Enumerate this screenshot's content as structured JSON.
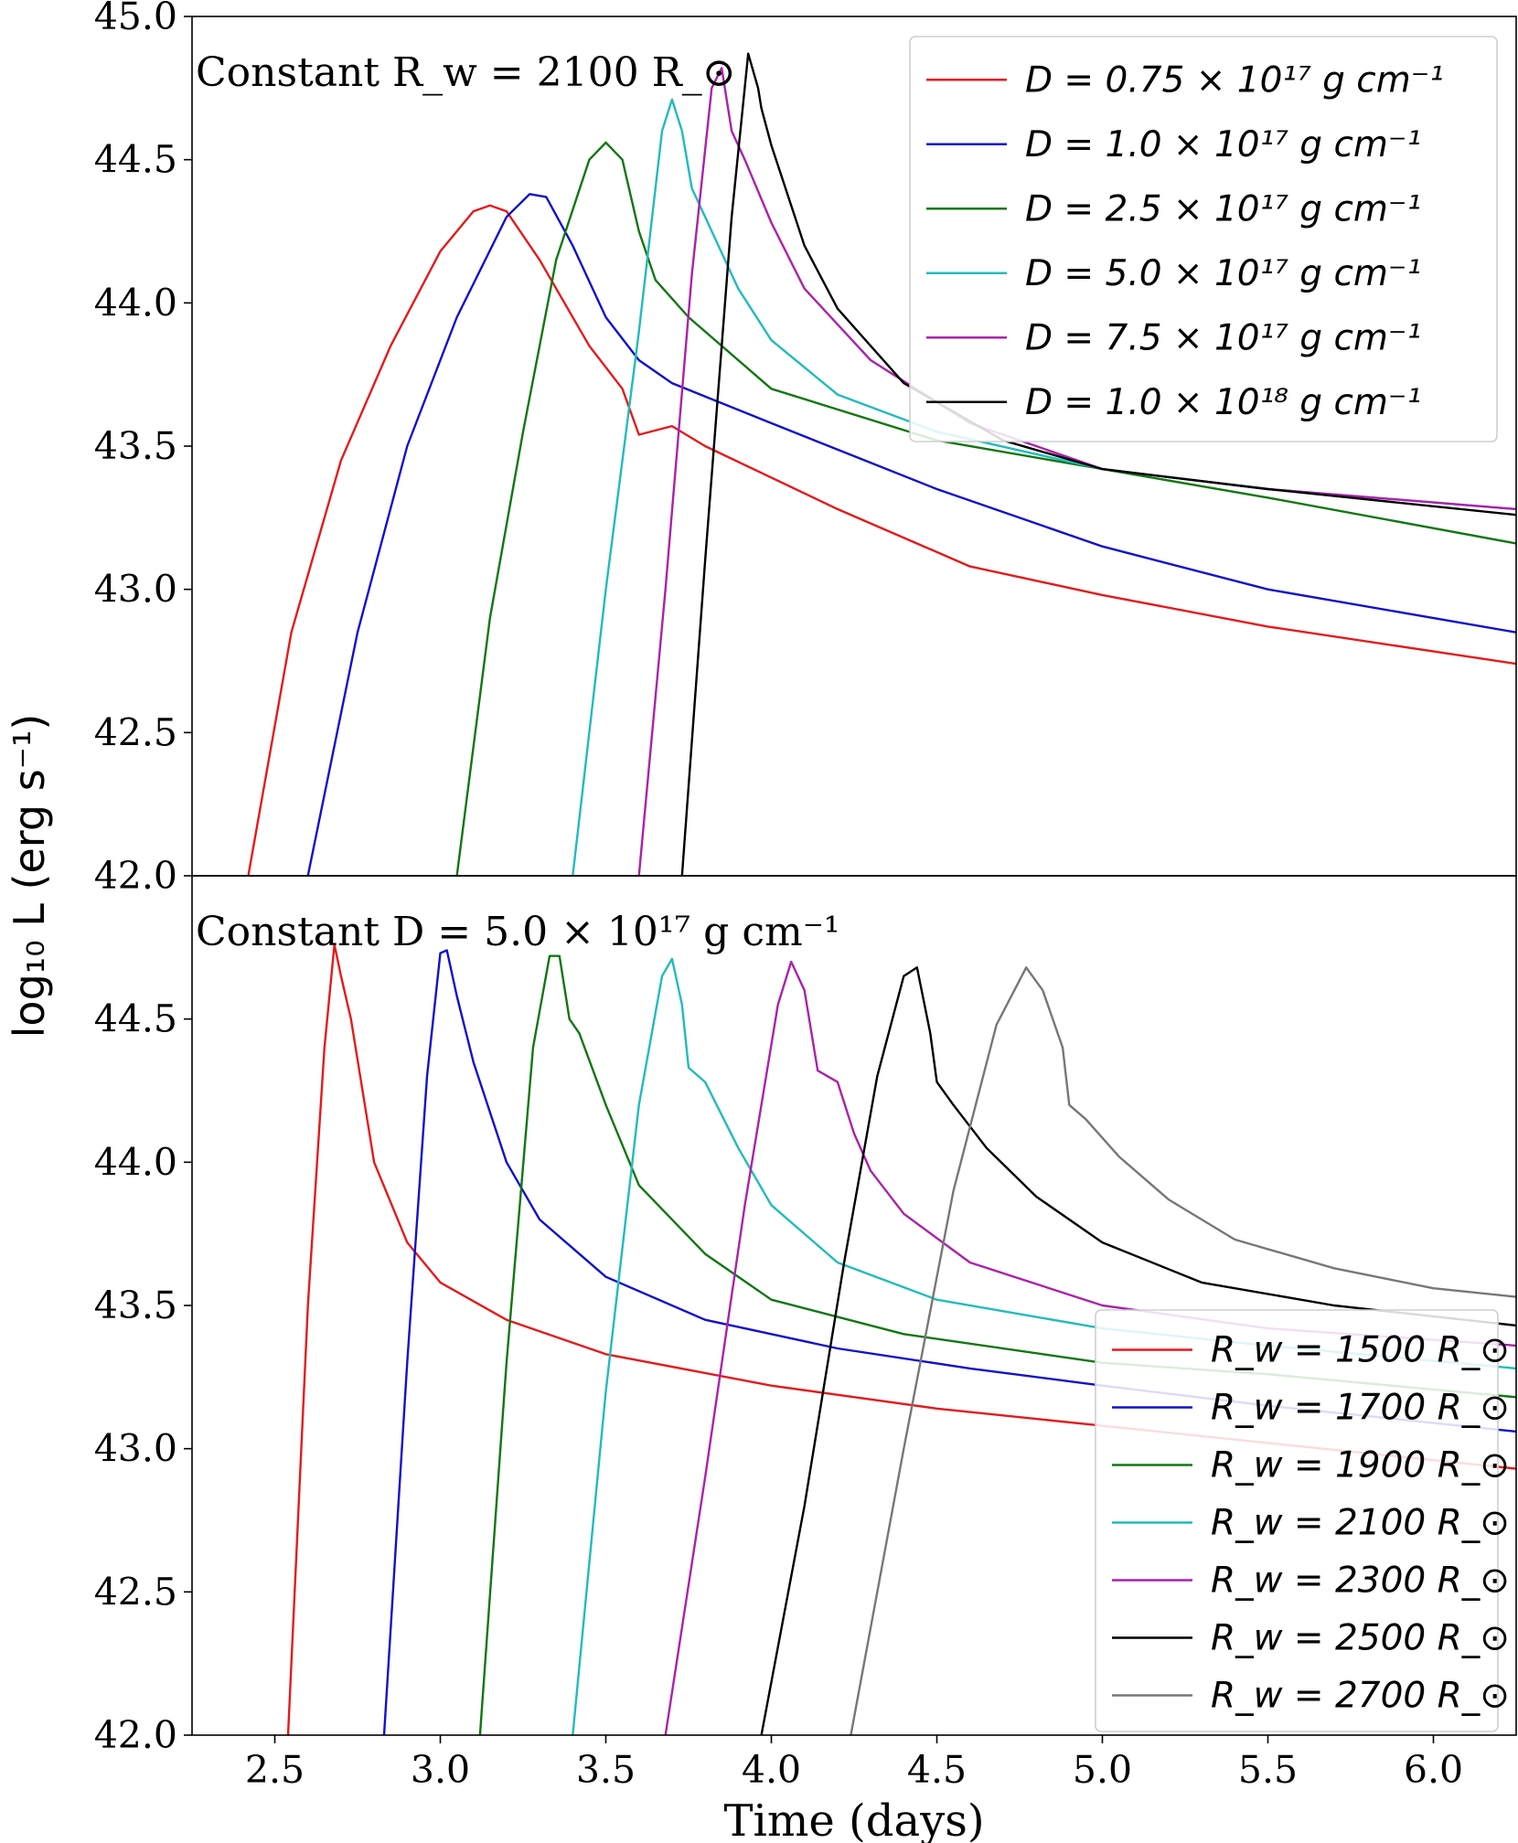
{
  "chart_data": [
    {
      "type": "line",
      "annotation": "Constant R_w = 2100 R_⊙",
      "ylabel": "log₁₀ L (erg s⁻¹)",
      "xlim": [
        2.25,
        6.25
      ],
      "ylim": [
        42.0,
        45.0
      ],
      "yticks": [
        "42.0",
        "42.5",
        "43.0",
        "43.5",
        "44.0",
        "44.5",
        "45.0"
      ],
      "grid": false,
      "legend_position": "top-right",
      "series": [
        {
          "name": "D = 0.75 × 10¹⁷ g cm⁻¹",
          "color": "#e41a1c",
          "x": [
            2.42,
            2.55,
            2.7,
            2.85,
            3.0,
            3.1,
            3.15,
            3.2,
            3.3,
            3.45,
            3.55,
            3.6,
            3.7,
            3.8,
            4.2,
            4.6,
            5.0,
            5.5,
            6.25
          ],
          "y": [
            42.0,
            42.85,
            43.45,
            43.85,
            44.18,
            44.32,
            44.34,
            44.32,
            44.15,
            43.85,
            43.7,
            43.54,
            43.57,
            43.5,
            43.28,
            43.08,
            42.98,
            42.87,
            42.74
          ]
        },
        {
          "name": "D = 1.0 × 10¹⁷ g cm⁻¹",
          "color": "#1111cc",
          "x": [
            2.6,
            2.75,
            2.9,
            3.05,
            3.2,
            3.27,
            3.32,
            3.4,
            3.5,
            3.6,
            3.7,
            4.0,
            4.5,
            5.0,
            5.5,
            6.25
          ],
          "y": [
            42.0,
            42.85,
            43.5,
            43.95,
            44.3,
            44.38,
            44.37,
            44.2,
            43.95,
            43.8,
            43.72,
            43.58,
            43.35,
            43.15,
            43.0,
            42.85
          ]
        },
        {
          "name": "D = 2.5 × 10¹⁷ g cm⁻¹",
          "color": "#117711",
          "x": [
            3.05,
            3.15,
            3.25,
            3.35,
            3.45,
            3.5,
            3.55,
            3.6,
            3.65,
            3.75,
            4.0,
            4.5,
            5.0,
            5.5,
            6.25
          ],
          "y": [
            42.0,
            42.9,
            43.55,
            44.15,
            44.5,
            44.56,
            44.5,
            44.25,
            44.08,
            43.95,
            43.7,
            43.52,
            43.42,
            43.32,
            43.16
          ]
        },
        {
          "name": "D = 5.0 × 10¹⁷ g cm⁻¹",
          "color": "#22bbbb",
          "x": [
            3.4,
            3.5,
            3.6,
            3.67,
            3.7,
            3.73,
            3.76,
            3.8,
            3.9,
            4.0,
            4.2,
            4.5,
            5.0,
            5.5,
            6.25
          ],
          "y": [
            42.0,
            43.0,
            43.9,
            44.6,
            44.71,
            44.6,
            44.4,
            44.3,
            44.05,
            43.87,
            43.68,
            43.55,
            43.42,
            43.35,
            43.28
          ]
        },
        {
          "name": "D = 7.5 × 10¹⁷ g cm⁻¹",
          "color": "#aa22aa",
          "x": [
            3.6,
            3.68,
            3.76,
            3.82,
            3.85,
            3.88,
            3.92,
            4.0,
            4.1,
            4.3,
            4.6,
            5.0,
            5.5,
            6.25
          ],
          "y": [
            42.0,
            43.0,
            44.1,
            44.75,
            44.82,
            44.6,
            44.5,
            44.28,
            44.05,
            43.8,
            43.58,
            43.42,
            43.35,
            43.28
          ]
        },
        {
          "name": "D = 1.0 × 10¹⁸ g cm⁻¹",
          "color": "#000000",
          "x": [
            3.73,
            3.8,
            3.88,
            3.93,
            3.96,
            3.97,
            4.0,
            4.1,
            4.2,
            4.4,
            4.7,
            5.0,
            5.5,
            6.25
          ],
          "y": [
            42.0,
            43.1,
            44.3,
            44.87,
            44.75,
            44.68,
            44.55,
            44.2,
            43.98,
            43.72,
            43.52,
            43.42,
            43.35,
            43.26
          ]
        }
      ]
    },
    {
      "type": "line",
      "annotation": "Constant D = 5.0 × 10¹⁷ g cm⁻¹",
      "xlabel": "Time (days)",
      "xlim": [
        2.25,
        6.25
      ],
      "ylim": [
        42.0,
        45.0
      ],
      "xticks": [
        "2.5",
        "3.0",
        "3.5",
        "4.0",
        "4.5",
        "5.0",
        "5.5",
        "6.0"
      ],
      "yticks": [
        "42.0",
        "42.5",
        "43.0",
        "43.5",
        "44.0",
        "44.5"
      ],
      "grid": false,
      "legend_position": "bottom-right",
      "series": [
        {
          "name": "R_w = 1500 R_⊙",
          "color": "#e41a1c",
          "x": [
            2.54,
            2.6,
            2.65,
            2.68,
            2.7,
            2.73,
            2.8,
            2.9,
            3.0,
            3.2,
            3.5,
            4.0,
            4.5,
            5.0,
            5.5,
            6.25
          ],
          "y": [
            42.0,
            43.5,
            44.4,
            44.76,
            44.65,
            44.5,
            44.0,
            43.72,
            43.58,
            43.45,
            43.33,
            43.22,
            43.14,
            43.08,
            43.02,
            42.93
          ]
        },
        {
          "name": "R_w = 1700 R_⊙",
          "color": "#1111cc",
          "x": [
            2.83,
            2.9,
            2.96,
            3.0,
            3.02,
            3.05,
            3.1,
            3.2,
            3.3,
            3.5,
            3.8,
            4.2,
            4.6,
            5.0,
            5.5,
            6.25
          ],
          "y": [
            42.0,
            43.3,
            44.3,
            44.73,
            44.74,
            44.58,
            44.35,
            44.0,
            43.8,
            43.6,
            43.45,
            43.35,
            43.28,
            43.22,
            43.15,
            43.06
          ]
        },
        {
          "name": "R_w = 1900 R_⊙",
          "color": "#117711",
          "x": [
            3.12,
            3.2,
            3.28,
            3.33,
            3.36,
            3.39,
            3.42,
            3.5,
            3.6,
            3.8,
            4.0,
            4.4,
            5.0,
            5.5,
            6.25
          ],
          "y": [
            42.0,
            43.3,
            44.4,
            44.72,
            44.72,
            44.5,
            44.45,
            44.2,
            43.92,
            43.68,
            43.52,
            43.4,
            43.3,
            43.26,
            43.18
          ]
        },
        {
          "name": "R_w = 2100 R_⊙",
          "color": "#22bbbb",
          "x": [
            3.4,
            3.5,
            3.6,
            3.67,
            3.7,
            3.73,
            3.75,
            3.8,
            3.9,
            4.0,
            4.2,
            4.5,
            5.0,
            5.5,
            6.25
          ],
          "y": [
            42.0,
            43.2,
            44.2,
            44.65,
            44.71,
            44.55,
            44.33,
            44.28,
            44.05,
            43.85,
            43.65,
            43.52,
            43.42,
            43.36,
            43.28
          ]
        },
        {
          "name": "R_w = 2300 R_⊙",
          "color": "#aa22aa",
          "x": [
            3.68,
            3.8,
            3.92,
            4.02,
            4.06,
            4.1,
            4.14,
            4.2,
            4.25,
            4.3,
            4.4,
            4.6,
            5.0,
            5.5,
            6.25
          ],
          "y": [
            42.0,
            42.9,
            43.85,
            44.55,
            44.7,
            44.6,
            44.32,
            44.28,
            44.1,
            43.97,
            43.82,
            43.65,
            43.5,
            43.42,
            43.36
          ]
        },
        {
          "name": "R_w = 2500 R_⊙",
          "color": "#000000",
          "x": [
            3.97,
            4.1,
            4.22,
            4.32,
            4.4,
            4.44,
            4.48,
            4.5,
            4.55,
            4.65,
            4.8,
            5.0,
            5.3,
            5.7,
            6.25
          ],
          "y": [
            42.0,
            42.8,
            43.65,
            44.3,
            44.65,
            44.68,
            44.45,
            44.28,
            44.2,
            44.05,
            43.88,
            43.72,
            43.58,
            43.5,
            43.43
          ]
        },
        {
          "name": "R_w = 2700 R_⊙",
          "color": "#777777",
          "x": [
            4.24,
            4.4,
            4.55,
            4.68,
            4.77,
            4.82,
            4.88,
            4.9,
            4.95,
            5.05,
            5.2,
            5.4,
            5.7,
            6.0,
            6.25
          ],
          "y": [
            42.0,
            43.0,
            43.9,
            44.48,
            44.68,
            44.6,
            44.4,
            44.2,
            44.15,
            44.02,
            43.87,
            43.73,
            43.63,
            43.56,
            43.53
          ]
        }
      ]
    }
  ]
}
